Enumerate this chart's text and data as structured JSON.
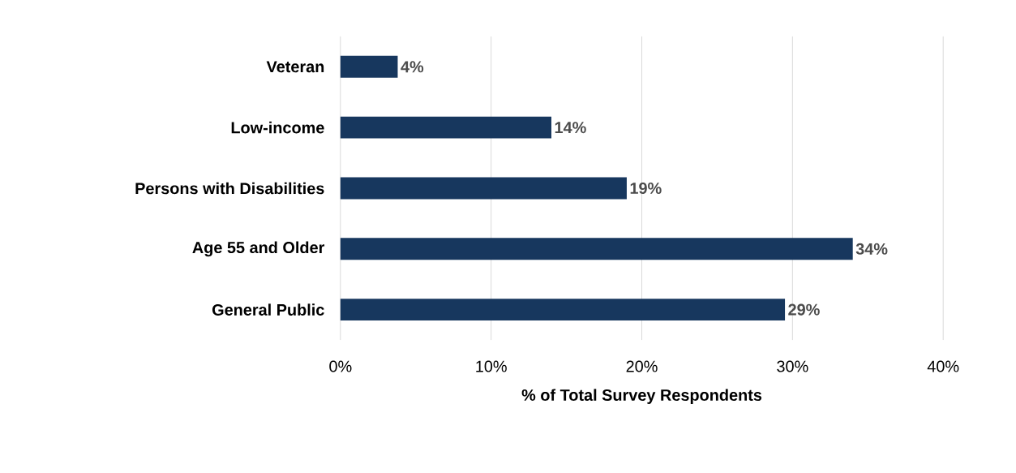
{
  "chart_data": {
    "type": "bar",
    "orientation": "horizontal",
    "xlabel": "% of Total Survey Respondents",
    "categories": [
      "Veteran",
      "Low-income",
      "Persons with Disabilities",
      "Age 55 and Older",
      "General Public"
    ],
    "values": [
      3.8,
      14,
      19,
      34,
      29.5
    ],
    "value_labels": [
      "4%",
      "14%",
      "19%",
      "34%",
      "29%"
    ],
    "color": "#17375e",
    "xlim": [
      0,
      40
    ],
    "xticks": [
      {
        "value": 0,
        "label": "0%"
      },
      {
        "value": 10,
        "label": "10%"
      },
      {
        "value": 20,
        "label": "20%"
      },
      {
        "value": 30,
        "label": "30%"
      },
      {
        "value": 40,
        "label": "40%"
      }
    ],
    "grid": "x"
  }
}
